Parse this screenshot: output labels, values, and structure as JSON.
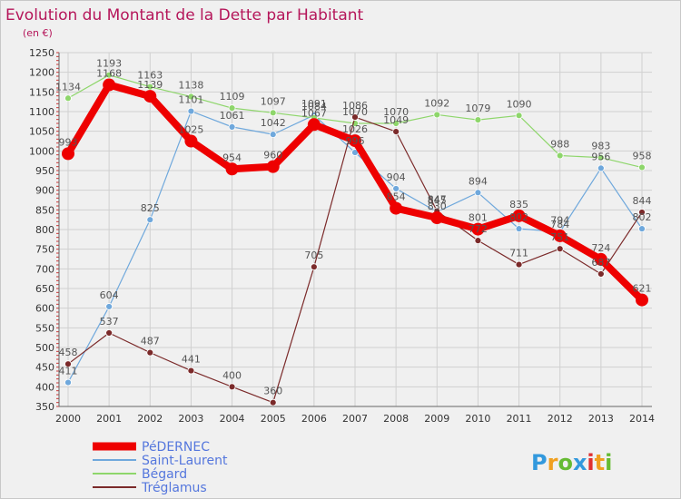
{
  "chart_data": {
    "type": "line",
    "title": "Evolution du Montant de la Dette par Habitant",
    "subtitle": "(en €)",
    "x": [
      "2000",
      "2001",
      "2002",
      "2003",
      "2004",
      "2005",
      "2006",
      "2007",
      "2008",
      "2009",
      "2010",
      "2011",
      "2012",
      "2013",
      "2014"
    ],
    "ylim": [
      350,
      1250
    ],
    "yticks": [
      350,
      400,
      450,
      500,
      550,
      600,
      650,
      700,
      750,
      800,
      850,
      900,
      950,
      1000,
      1050,
      1100,
      1150,
      1200,
      1250
    ],
    "grid": true,
    "series": [
      {
        "name": "PéDERNEC",
        "color": "#ee0000",
        "emphasis": true,
        "values": [
          993,
          1168,
          1139,
          1025,
          954,
          960,
          1067,
          1026,
          854,
          830,
          801,
          835,
          784,
          724,
          621
        ]
      },
      {
        "name": "Saint-Laurent",
        "color": "#6fa8dc",
        "values": [
          411,
          604,
          825,
          1101,
          1061,
          1042,
          1091,
          996,
          904,
          845,
          894,
          802,
          794,
          956,
          802
        ]
      },
      {
        "name": "Bégard",
        "color": "#8ed66b",
        "values": [
          1134,
          1193,
          1163,
          1138,
          1109,
          1097,
          1084,
          1070,
          1070,
          1092,
          1079,
          1090,
          988,
          983,
          958
        ]
      },
      {
        "name": "Tréglamus",
        "color": "#7b2a2a",
        "values": [
          458,
          537,
          487,
          441,
          400,
          360,
          705,
          1086,
          1049,
          847,
          772,
          711,
          751,
          687,
          844
        ]
      }
    ],
    "legend_position": "bottom-left"
  },
  "logo": {
    "letters": [
      "P",
      "r",
      "o",
      "x",
      "i",
      "t",
      "i"
    ],
    "colors": [
      "#3399dd",
      "#f0a020",
      "#66bb33",
      "#3399dd",
      "#e03030",
      "#f0a020",
      "#66bb33"
    ]
  }
}
